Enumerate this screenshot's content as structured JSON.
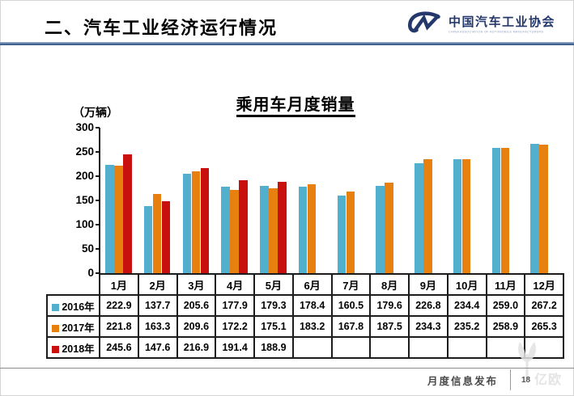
{
  "header": {
    "title": "二、汽车工业经济运行情况",
    "logo": {
      "org_name": "中国汽车工业协会",
      "org_subtitle": "CHINA ASSOCIATION OF AUTOMOBILE MANUFACTURERS",
      "mark_color": "#24386b"
    }
  },
  "chart_data": {
    "type": "bar",
    "title": "乘用车月度销量",
    "ylabel": "（万辆）",
    "ylim": [
      0,
      300
    ],
    "ytick_step": 50,
    "grid": false,
    "legend_position": "table-left",
    "categories": [
      "1月",
      "2月",
      "3月",
      "4月",
      "5月",
      "6月",
      "7月",
      "8月",
      "9月",
      "10月",
      "11月",
      "12月"
    ],
    "series": [
      {
        "name": "2016年",
        "color": "#52AFCD",
        "values": [
          222.9,
          137.7,
          205.6,
          177.9,
          179.3,
          178.4,
          160.5,
          179.6,
          226.8,
          234.4,
          259.0,
          267.2
        ]
      },
      {
        "name": "2017年",
        "color": "#E8800F",
        "values": [
          221.8,
          163.3,
          209.6,
          172.2,
          175.1,
          183.2,
          167.8,
          187.5,
          234.3,
          235.2,
          258.9,
          265.3
        ]
      },
      {
        "name": "2018年",
        "color": "#C8100E",
        "values": [
          245.6,
          147.6,
          216.9,
          191.4,
          188.9,
          null,
          null,
          null,
          null,
          null,
          null,
          null
        ]
      }
    ]
  },
  "footer": {
    "label": "月度信息发布",
    "page_number": "18",
    "watermark_text": "亿欧"
  }
}
